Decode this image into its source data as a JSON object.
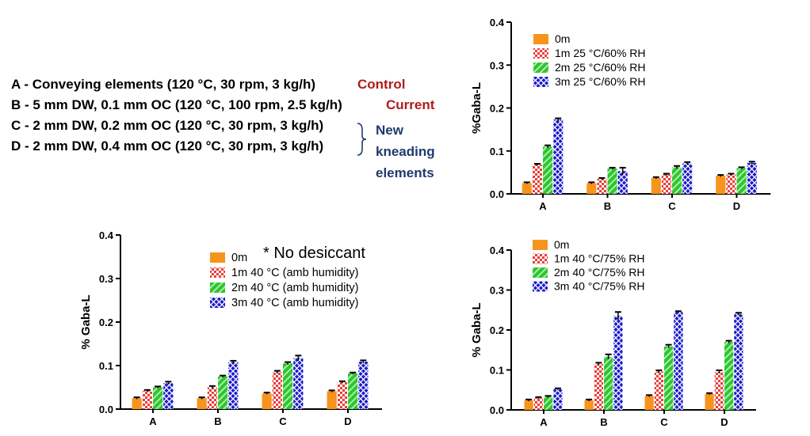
{
  "notes": {
    "items": [
      {
        "text": "A - Conveying elements (120 °C, 30 rpm, 3 kg/h)",
        "tag": "Control"
      },
      {
        "text": "B - 5 mm DW, 0.1 mm OC (120 °C, 100 rpm, 2.5 kg/h)",
        "tag": "Current"
      },
      {
        "text": "C - 2 mm DW, 0.2 mm OC (120 °C, 30 rpm, 3 kg/h)",
        "tag": ""
      },
      {
        "text": "D - 2 mm DW, 0.4 mm OC (120 °C, 30 rpm, 3 kg/h)",
        "tag": ""
      }
    ],
    "bracket_label": [
      "New",
      "kneading",
      "elements"
    ]
  },
  "colors": {
    "text_red": "#b01c1c",
    "text_blue": "#1f3a6e",
    "series": [
      "#f7941d",
      "#e8403a",
      "#2fc42f",
      "#1a1acc"
    ]
  },
  "chart_data": [
    {
      "type": "bar",
      "categories": [
        "A",
        "B",
        "C",
        "D"
      ],
      "ylabel": "%Gaba-L",
      "ylim": [
        0,
        0.4
      ],
      "yticks": [
        "0.0",
        "0.1",
        "0.2",
        "0.3",
        "0.4"
      ],
      "annotation": "",
      "legend": "top-left",
      "series": [
        {
          "name": "0m",
          "values": [
            0.025,
            0.025,
            0.037,
            0.042
          ],
          "errors": [
            0.002,
            0.002,
            0.002,
            0.002
          ]
        },
        {
          "name": "1m 25 °C/60% RH",
          "values": [
            0.068,
            0.035,
            0.045,
            0.045
          ],
          "errors": [
            0.002,
            0.002,
            0.002,
            0.002
          ]
        },
        {
          "name": "2m 25 °C/60% RH",
          "values": [
            0.11,
            0.059,
            0.062,
            0.06
          ],
          "errors": [
            0.003,
            0.002,
            0.003,
            0.002
          ]
        },
        {
          "name": "3m 25 °C/60% RH",
          "values": [
            0.173,
            0.053,
            0.071,
            0.072
          ],
          "errors": [
            0.003,
            0.008,
            0.003,
            0.003
          ]
        }
      ]
    },
    {
      "type": "bar",
      "categories": [
        "A",
        "B",
        "C",
        "D"
      ],
      "ylabel": "%  Gaba-L",
      "ylim": [
        0,
        0.4
      ],
      "yticks": [
        "0.0",
        "0.1",
        "0.2",
        "0.3",
        "0.4"
      ],
      "annotation": "* No desiccant",
      "legend": "top-right",
      "series": [
        {
          "name": "0m",
          "values": [
            0.025,
            0.025,
            0.036,
            0.041
          ],
          "errors": [
            0.002,
            0.002,
            0.002,
            0.002
          ]
        },
        {
          "name": "1m 40 °C (amb humidity)",
          "values": [
            0.042,
            0.05,
            0.085,
            0.062
          ],
          "errors": [
            0.002,
            0.003,
            0.003,
            0.002
          ]
        },
        {
          "name": "2m 40 °C (amb humidity)",
          "values": [
            0.05,
            0.075,
            0.105,
            0.082
          ],
          "errors": [
            0.002,
            0.002,
            0.003,
            0.002
          ]
        },
        {
          "name": "3m 40 °C (amb humidity)",
          "values": [
            0.06,
            0.108,
            0.117,
            0.109
          ],
          "errors": [
            0.003,
            0.003,
            0.006,
            0.003
          ]
        }
      ]
    },
    {
      "type": "bar",
      "categories": [
        "A",
        "B",
        "C",
        "D"
      ],
      "ylabel": "% Gaba-L",
      "ylim": [
        0,
        0.4
      ],
      "yticks": [
        "0.0",
        "0.1",
        "0.2",
        "0.3",
        "0.4"
      ],
      "annotation": "",
      "legend": "top-left",
      "series": [
        {
          "name": "0m",
          "values": [
            0.024,
            0.024,
            0.035,
            0.04
          ],
          "errors": [
            0.002,
            0.002,
            0.002,
            0.002
          ]
        },
        {
          "name": "1m 40 °C/75% RH",
          "values": [
            0.03,
            0.115,
            0.096,
            0.095
          ],
          "errors": [
            0.002,
            0.003,
            0.003,
            0.004
          ]
        },
        {
          "name": "2m 40 °C/75% RH",
          "values": [
            0.033,
            0.133,
            0.159,
            0.17
          ],
          "errors": [
            0.002,
            0.006,
            0.004,
            0.003
          ]
        },
        {
          "name": "3m 40 °C/75% RH",
          "values": [
            0.052,
            0.235,
            0.245,
            0.24
          ],
          "errors": [
            0.002,
            0.01,
            0.002,
            0.003
          ]
        }
      ]
    }
  ]
}
